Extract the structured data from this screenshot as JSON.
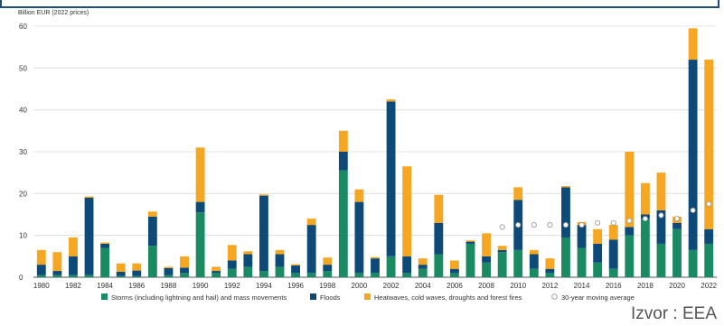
{
  "source": "Izvor : EEA",
  "chart_data": {
    "type": "bar",
    "stacked": true,
    "ylabel": "Billion EUR (2022 prices)",
    "ylim": [
      0,
      60
    ],
    "yticks": [
      0,
      10,
      20,
      30,
      40,
      50,
      60
    ],
    "xtick_labels": [
      "1980",
      "1982",
      "1984",
      "1986",
      "1988",
      "1990",
      "1992",
      "1994",
      "1996",
      "1998",
      "2000",
      "2002",
      "2004",
      "2006",
      "2008",
      "2010",
      "2012",
      "2014",
      "2016",
      "2018",
      "2020",
      "2022"
    ],
    "grid": true,
    "legend_position": "bottom",
    "categories": [
      "1980",
      "1981",
      "1982",
      "1983",
      "1984",
      "1985",
      "1986",
      "1987",
      "1988",
      "1989",
      "1990",
      "1991",
      "1992",
      "1993",
      "1994",
      "1995",
      "1996",
      "1997",
      "1998",
      "1999",
      "2000",
      "2001",
      "2002",
      "2003",
      "2004",
      "2005",
      "2006",
      "2007",
      "2008",
      "2009",
      "2010",
      "2011",
      "2012",
      "2013",
      "2014",
      "2015",
      "2016",
      "2017",
      "2018",
      "2019",
      "2020",
      "2021",
      "2022"
    ],
    "series": [
      {
        "name": "Storms (including lightning and hail) and mass movements",
        "color": "#1a8a62",
        "values": [
          0.5,
          0.5,
          0.5,
          0.5,
          7.0,
          0.3,
          0.3,
          7.5,
          0.5,
          1.0,
          15.5,
          1.0,
          2.0,
          2.5,
          1.5,
          2.5,
          1.0,
          1.0,
          1.5,
          25.5,
          1.0,
          1.0,
          5.0,
          1.0,
          2.0,
          5.5,
          1.0,
          8.0,
          3.5,
          6.0,
          6.5,
          2.0,
          1.0,
          9.5,
          7.0,
          3.5,
          2.0,
          10.0,
          14.0,
          8.0,
          11.5,
          6.5,
          8.0
        ]
      },
      {
        "name": "Floods",
        "color": "#0d4a78",
        "values": [
          2.5,
          1.0,
          4.5,
          18.5,
          1.0,
          1.0,
          1.3,
          7.0,
          1.7,
          1.3,
          2.5,
          0.5,
          2.0,
          3.0,
          18.0,
          3.0,
          1.8,
          11.5,
          1.5,
          4.5,
          17.0,
          3.5,
          37.0,
          4.0,
          1.0,
          7.5,
          1.0,
          0.5,
          1.5,
          0.5,
          12.0,
          3.5,
          1.0,
          12.0,
          5.5,
          4.5,
          7.0,
          2.0,
          1.0,
          8.0,
          1.5,
          45.5,
          3.5
        ]
      },
      {
        "name": "Heatwaves, cold waves, droughts and forest fires",
        "color": "#f5a623",
        "values": [
          3.5,
          4.5,
          4.5,
          0.3,
          0.3,
          2.0,
          1.7,
          1.2,
          0.3,
          2.7,
          13.0,
          1.0,
          3.7,
          0.7,
          0.3,
          1.0,
          0.3,
          1.5,
          1.7,
          5.0,
          3.0,
          0.3,
          0.5,
          21.5,
          1.5,
          6.7,
          2.0,
          0.3,
          5.5,
          1.0,
          3.0,
          1.0,
          2.5,
          0.3,
          0.7,
          3.5,
          3.5,
          18.0,
          7.5,
          9.0,
          1.5,
          7.5,
          40.5
        ]
      },
      {
        "name": "30-year moving average",
        "type": "scatter",
        "color": "#ffffff",
        "x": [
          "2009",
          "2010",
          "2011",
          "2012",
          "2013",
          "2014",
          "2015",
          "2016",
          "2017",
          "2018",
          "2019",
          "2020",
          "2021",
          "2022"
        ],
        "values": [
          12.0,
          12.5,
          12.5,
          12.5,
          12.5,
          12.5,
          13.0,
          13.0,
          13.5,
          14.0,
          14.8,
          14.0,
          16.0,
          17.5
        ]
      }
    ]
  }
}
